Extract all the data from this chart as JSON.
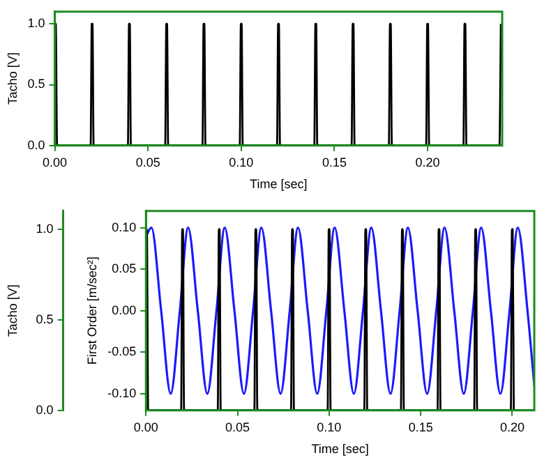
{
  "chart_data": [
    {
      "type": "line",
      "xlabel": "Time [sec]",
      "ylabel": "Tacho [V]",
      "color": "#000000",
      "marker": "none",
      "grid": false,
      "legend": false,
      "x": [
        0,
        0.0005,
        0.0012,
        0.0192,
        0.0198,
        0.0202,
        0.0208,
        0.0392,
        0.0398,
        0.0402,
        0.0408,
        0.0592,
        0.0598,
        0.0602,
        0.0608,
        0.0792,
        0.0798,
        0.0802,
        0.0808,
        0.0992,
        0.0998,
        0.1002,
        0.1008,
        0.1192,
        0.1198,
        0.1202,
        0.1208,
        0.1392,
        0.1398,
        0.1402,
        0.1408,
        0.1592,
        0.1598,
        0.1602,
        0.1608,
        0.1792,
        0.1798,
        0.1802,
        0.1808,
        0.1992,
        0.1998,
        0.2002,
        0.2008,
        0.2192,
        0.2198,
        0.2202,
        0.2208,
        0.2385,
        0.2393
      ],
      "values": [
        1,
        1,
        0,
        0,
        1,
        1,
        0,
        0,
        1,
        1,
        0,
        0,
        1,
        1,
        0,
        0,
        1,
        1,
        0,
        0,
        1,
        1,
        0,
        0,
        1,
        1,
        0,
        0,
        1,
        1,
        0,
        0,
        1,
        1,
        0,
        0,
        1,
        1,
        0,
        0,
        1,
        1,
        0,
        0,
        1,
        1,
        0,
        0,
        1
      ],
      "xlim": [
        0,
        0.24
      ],
      "xticks": [
        {
          "value": 0,
          "label": "0.00"
        },
        {
          "value": 0.05,
          "label": "0.05"
        },
        {
          "value": 0.1,
          "label": "0.10"
        },
        {
          "value": 0.15,
          "label": "0.15"
        },
        {
          "value": 0.2,
          "label": "0.20"
        }
      ],
      "ylim": [
        0,
        1.1
      ],
      "yticks": [
        {
          "value": 0,
          "label": "0.0"
        },
        {
          "value": 0.5,
          "label": "0.5"
        },
        {
          "value": 1,
          "label": "1.0"
        }
      ]
    },
    {
      "type": "line",
      "xlabel": "Time [sec]",
      "ylabel": "Tacho [V]",
      "y2label": "First Order [m/sec²]",
      "marker": "none",
      "grid": false,
      "legend": false,
      "series": [
        {
          "color": "#000000",
          "x": [
            0,
            0.0005,
            0.0012,
            0.0192,
            0.0198,
            0.0202,
            0.0208,
            0.0392,
            0.0398,
            0.0402,
            0.0408,
            0.0592,
            0.0598,
            0.0602,
            0.0608,
            0.0792,
            0.0798,
            0.0802,
            0.0808,
            0.0992,
            0.0998,
            0.1002,
            0.1008,
            0.1192,
            0.1198,
            0.1202,
            0.1208,
            0.1392,
            0.1398,
            0.1402,
            0.1408,
            0.1592,
            0.1598,
            0.1602,
            0.1608,
            0.1792,
            0.1798,
            0.1802,
            0.1808,
            0.1992,
            0.1998,
            0.2002,
            0.2008
          ],
          "values": [
            1,
            1,
            0,
            0,
            1,
            1,
            0,
            0,
            1,
            1,
            0,
            0,
            1,
            1,
            0,
            0,
            1,
            1,
            0,
            0,
            1,
            1,
            0,
            0,
            1,
            1,
            0,
            0,
            1,
            1,
            0,
            0,
            1,
            1,
            0,
            0,
            1,
            1,
            0,
            0,
            1,
            1,
            0
          ]
        },
        {
          "color": "#1a1aff",
          "axis": "y2",
          "x": [
            0,
            0.003,
            0.0083,
            0.0135,
            0.0185,
            0.023,
            0.0283,
            0.0335,
            0.0385,
            0.043,
            0.0483,
            0.0535,
            0.0585,
            0.063,
            0.0683,
            0.0735,
            0.0785,
            0.083,
            0.0883,
            0.0935,
            0.0985,
            0.103,
            0.1083,
            0.1135,
            0.1185,
            0.123,
            0.1283,
            0.1335,
            0.1385,
            0.143,
            0.1483,
            0.1535,
            0.1585,
            0.163,
            0.1683,
            0.1735,
            0.1785,
            0.183,
            0.1883,
            0.1935,
            0.1985,
            0.203,
            0.2083,
            0.212
          ],
          "values": [
            0.09,
            0.1,
            0,
            -0.1,
            0,
            0.1,
            0,
            -0.1,
            0,
            0.1,
            0,
            -0.1,
            0,
            0.1,
            0,
            -0.1,
            0,
            0.1,
            0,
            -0.1,
            0,
            0.1,
            0,
            -0.1,
            0,
            0.1,
            0,
            -0.1,
            0,
            0.1,
            0,
            -0.1,
            0,
            0.1,
            0,
            -0.1,
            0,
            0.1,
            0,
            -0.1,
            0,
            0.1,
            0,
            -0.09
          ]
        }
      ],
      "xlim": [
        0,
        0.212
      ],
      "xticks": [
        {
          "value": 0,
          "label": "0.00"
        },
        {
          "value": 0.05,
          "label": "0.05"
        },
        {
          "value": 0.1,
          "label": "0.10"
        },
        {
          "value": 0.15,
          "label": "0.15"
        },
        {
          "value": 0.2,
          "label": "0.20"
        }
      ],
      "ylim": [
        0,
        1.1
      ],
      "yticks": [
        {
          "value": 0,
          "label": "0.0"
        },
        {
          "value": 0.5,
          "label": "0.5"
        },
        {
          "value": 1,
          "label": "1.0"
        }
      ],
      "y2lim": [
        -0.12,
        0.12
      ],
      "y2ticks": [
        {
          "value": -0.1,
          "label": "-0.10"
        },
        {
          "value": -0.05,
          "label": "-0.05"
        },
        {
          "value": 0,
          "label": "0.00"
        },
        {
          "value": 0.05,
          "label": "0.05"
        },
        {
          "value": 0.1,
          "label": "0.10"
        }
      ]
    }
  ]
}
